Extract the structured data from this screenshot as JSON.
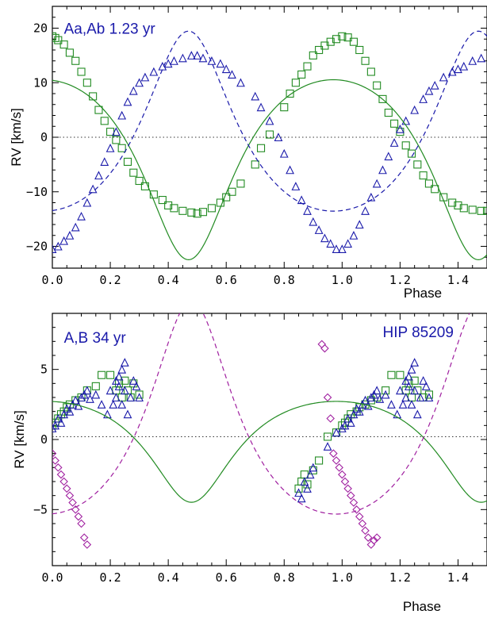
{
  "colors": {
    "primary": "#228b22",
    "secondary": "#1a1aaa",
    "outer": "#a020a0",
    "zero_line": "#333333"
  },
  "chart_data": [
    {
      "type": "scatter",
      "title": "",
      "xlabel": "Phase",
      "ylabel": "RV [km/s]",
      "xlim": [
        0.0,
        1.5
      ],
      "ylim": [
        -24,
        24
      ],
      "xticks": [
        0.0,
        0.2,
        0.4,
        0.6,
        0.8,
        1.0,
        1.2,
        1.4
      ],
      "xtick_labels": [
        "0.0",
        "0.2",
        "0.4",
        "0.6",
        "0.8",
        "1.0",
        "1.2",
        "1.4"
      ],
      "yticks": [
        -20,
        -10,
        0,
        10,
        20
      ],
      "ytick_labels": [
        "−20",
        "−10",
        "0",
        "10",
        "20"
      ],
      "zero_line": 0,
      "annotations": [
        {
          "text": "Aa,Ab  1.23 yr",
          "x": 0.04,
          "y": 19.0,
          "color": "#1a1aaa"
        }
      ],
      "series": [
        {
          "kind": "points",
          "marker": "square",
          "color": "#228b22",
          "x": [
            0.0,
            0.01,
            0.02,
            0.04,
            0.06,
            0.08,
            0.1,
            0.12,
            0.14,
            0.16,
            0.18,
            0.2,
            0.22,
            0.24,
            0.26,
            0.28,
            0.3,
            0.32,
            0.35,
            0.38,
            0.4,
            0.42,
            0.45,
            0.48,
            0.5,
            0.52,
            0.55,
            0.58,
            0.6,
            0.62,
            0.65,
            0.7,
            0.72,
            0.75,
            0.8,
            0.82,
            0.84,
            0.86,
            0.88,
            0.9,
            0.92,
            0.94,
            0.96,
            0.98,
            1.0,
            1.02,
            1.04,
            1.06,
            1.08,
            1.1,
            1.12,
            1.14,
            1.16,
            1.18,
            1.2,
            1.22,
            1.24,
            1.26,
            1.28,
            1.3,
            1.32,
            1.35,
            1.38,
            1.4,
            1.42,
            1.45,
            1.48,
            1.5
          ],
          "y": [
            18.5,
            18.2,
            17.8,
            17.0,
            15.5,
            14.0,
            12.0,
            10.0,
            7.5,
            5.0,
            3.0,
            1.0,
            -0.5,
            -2.0,
            -4.5,
            -6.5,
            -8.0,
            -9.0,
            -10.5,
            -11.5,
            -12.5,
            -13.0,
            -13.5,
            -13.8,
            -14.0,
            -13.7,
            -13.0,
            -12.0,
            -11.0,
            -10.0,
            -8.5,
            -5.0,
            -2.0,
            0.5,
            5.5,
            8.0,
            10.0,
            11.5,
            13.0,
            15.0,
            16.0,
            16.8,
            17.5,
            18.0,
            18.5,
            18.3,
            17.5,
            16.0,
            14.0,
            12.0,
            9.5,
            7.0,
            4.5,
            2.5,
            1.0,
            -1.5,
            -3.0,
            -5.0,
            -7.0,
            -8.5,
            -9.5,
            -11.0,
            -12.0,
            -12.5,
            -13.0,
            -13.3,
            -13.5,
            -13.5
          ]
        },
        {
          "kind": "points",
          "marker": "triangle",
          "color": "#1a1aaa",
          "x": [
            0.0,
            0.02,
            0.04,
            0.06,
            0.08,
            0.1,
            0.12,
            0.14,
            0.16,
            0.18,
            0.2,
            0.22,
            0.24,
            0.26,
            0.28,
            0.3,
            0.32,
            0.35,
            0.38,
            0.4,
            0.42,
            0.45,
            0.48,
            0.5,
            0.52,
            0.55,
            0.58,
            0.6,
            0.62,
            0.65,
            0.7,
            0.72,
            0.75,
            0.78,
            0.8,
            0.82,
            0.84,
            0.86,
            0.88,
            0.9,
            0.92,
            0.94,
            0.96,
            0.98,
            1.0,
            1.02,
            1.04,
            1.06,
            1.08,
            1.1,
            1.12,
            1.14,
            1.16,
            1.18,
            1.2,
            1.22,
            1.25,
            1.28,
            1.3,
            1.32,
            1.35,
            1.38,
            1.4,
            1.42,
            1.45,
            1.48
          ],
          "y": [
            -20.5,
            -20.0,
            -19.0,
            -18.0,
            -16.5,
            -14.5,
            -12.0,
            -9.5,
            -7.0,
            -4.5,
            -2.0,
            1.0,
            4.0,
            6.5,
            8.5,
            10.0,
            11.0,
            12.0,
            13.0,
            13.5,
            14.0,
            14.5,
            15.0,
            15.0,
            14.5,
            14.0,
            13.5,
            12.5,
            11.5,
            10.0,
            7.5,
            5.5,
            3.0,
            0.0,
            -3.0,
            -6.0,
            -9.0,
            -11.5,
            -13.5,
            -15.5,
            -17.0,
            -18.5,
            -19.5,
            -20.5,
            -20.5,
            -19.5,
            -18.0,
            -16.0,
            -13.5,
            -11.0,
            -8.5,
            -6.0,
            -3.5,
            -1.0,
            1.5,
            3.0,
            5.0,
            7.0,
            8.5,
            9.5,
            11.0,
            12.0,
            12.5,
            13.0,
            14.0,
            14.5
          ]
        },
        {
          "kind": "curve",
          "style": "solid",
          "color": "#228b22",
          "gamma": -1.5,
          "amplitude": 16.5,
          "e": 0.27,
          "omega_deg": 180,
          "phase_offset": 0.47
        },
        {
          "kind": "curve",
          "style": "dashed",
          "color": "#1a1aaa",
          "gamma": -1.5,
          "amplitude": 16.5,
          "e": 0.27,
          "omega_deg": 0,
          "phase_offset": 0.47
        }
      ]
    },
    {
      "type": "scatter",
      "title": "",
      "xlabel": "Phase",
      "ylabel": "RV [km/s]",
      "xlim": [
        0.0,
        1.5
      ],
      "ylim": [
        -9,
        9
      ],
      "xticks": [
        0.0,
        0.2,
        0.4,
        0.6,
        0.8,
        1.0,
        1.2,
        1.4
      ],
      "xtick_labels": [
        "0.0",
        "0.2",
        "0.4",
        "0.6",
        "0.8",
        "1.0",
        "1.2",
        "1.4"
      ],
      "yticks": [
        -5,
        0,
        5
      ],
      "ytick_labels": [
        "−5",
        "0",
        "5"
      ],
      "zero_line": 0.2,
      "annotations": [
        {
          "text": "A,B 34 yr",
          "x": 0.04,
          "y": 6.9,
          "color": "#1a1aaa"
        },
        {
          "text": "HIP 85209",
          "x": 1.14,
          "y": 7.3,
          "color": "#1a1aaa"
        }
      ],
      "series": [
        {
          "kind": "points",
          "marker": "square",
          "color": "#228b22",
          "x": [
            0.0,
            0.01,
            0.02,
            0.03,
            0.04,
            0.05,
            0.06,
            0.08,
            0.1,
            0.12,
            0.15,
            0.17,
            0.2,
            0.22,
            0.23,
            0.24,
            0.25,
            0.26,
            0.27,
            0.28,
            0.3,
            0.85,
            0.86,
            0.87,
            0.88,
            0.9,
            0.92,
            0.95,
            0.98,
            1.0,
            1.01,
            1.02,
            1.03,
            1.05,
            1.06,
            1.08,
            1.1,
            1.12,
            1.15,
            1.17,
            1.2,
            1.22,
            1.23,
            1.24,
            1.25,
            1.26,
            1.28,
            1.3
          ],
          "y": [
            1.0,
            1.2,
            1.5,
            1.8,
            2.0,
            2.3,
            2.5,
            2.8,
            3.0,
            3.5,
            3.8,
            4.6,
            4.6,
            3.5,
            4.0,
            3.0,
            4.2,
            3.5,
            3.0,
            4.0,
            3.2,
            -3.5,
            -3.0,
            -2.5,
            -3.2,
            -2.2,
            -1.5,
            0.2,
            0.5,
            1.0,
            1.2,
            1.5,
            1.8,
            2.0,
            2.3,
            2.5,
            2.8,
            3.0,
            3.5,
            4.6,
            4.6,
            3.5,
            4.0,
            3.0,
            4.2,
            3.5,
            3.0,
            3.2
          ]
        },
        {
          "kind": "points",
          "marker": "triangle",
          "color": "#1a1aaa",
          "x": [
            0.0,
            0.01,
            0.02,
            0.03,
            0.04,
            0.05,
            0.06,
            0.07,
            0.08,
            0.09,
            0.1,
            0.11,
            0.12,
            0.13,
            0.15,
            0.17,
            0.19,
            0.2,
            0.21,
            0.22,
            0.22,
            0.23,
            0.23,
            0.24,
            0.24,
            0.25,
            0.25,
            0.26,
            0.27,
            0.28,
            0.29,
            0.3,
            0.85,
            0.86,
            0.87,
            0.88,
            0.89,
            0.9,
            0.95,
            0.98,
            1.0,
            1.01,
            1.02,
            1.03,
            1.04,
            1.05,
            1.06,
            1.07,
            1.08,
            1.09,
            1.1,
            1.11,
            1.12,
            1.13,
            1.15,
            1.17,
            1.19,
            1.2,
            1.21,
            1.22,
            1.22,
            1.23,
            1.23,
            1.24,
            1.24,
            1.25,
            1.25,
            1.26,
            1.27,
            1.28,
            1.29,
            1.3
          ],
          "y": [
            0.8,
            1.0,
            1.5,
            1.2,
            1.8,
            2.2,
            2.0,
            2.5,
            2.8,
            2.4,
            3.0,
            3.2,
            3.5,
            2.9,
            3.2,
            2.5,
            1.8,
            3.5,
            2.5,
            4.2,
            3.0,
            4.5,
            3.8,
            2.5,
            5.0,
            3.5,
            5.5,
            1.8,
            3.0,
            4.2,
            3.8,
            3.0,
            -3.8,
            -4.2,
            -3.0,
            -3.5,
            -2.5,
            -2.0,
            -0.5,
            0.5,
            0.8,
            1.0,
            1.5,
            1.2,
            1.8,
            2.2,
            2.0,
            2.5,
            2.8,
            2.4,
            3.0,
            3.2,
            3.5,
            2.9,
            3.2,
            2.5,
            1.8,
            3.5,
            2.5,
            4.2,
            3.0,
            4.5,
            3.8,
            2.5,
            5.0,
            3.5,
            5.5,
            1.8,
            3.0,
            4.2,
            3.8,
            3.0
          ]
        },
        {
          "kind": "points",
          "marker": "diamond",
          "color": "#a020a0",
          "x": [
            0.0,
            0.01,
            0.02,
            0.03,
            0.04,
            0.05,
            0.06,
            0.07,
            0.08,
            0.09,
            0.1,
            0.11,
            0.12,
            0.93,
            0.94,
            0.95,
            0.96,
            0.97,
            0.98,
            0.99,
            1.0,
            1.01,
            1.02,
            1.03,
            1.04,
            1.05,
            1.06,
            1.07,
            1.08,
            1.09,
            1.1,
            1.11,
            1.12
          ],
          "y": [
            -1.0,
            -1.5,
            -2.0,
            -2.5,
            -3.0,
            -3.5,
            -4.0,
            -4.5,
            -5.0,
            -5.5,
            -6.0,
            -7.0,
            -7.5,
            6.8,
            6.5,
            3.0,
            1.5,
            -1.0,
            -1.5,
            -2.0,
            -2.5,
            -3.0,
            -3.5,
            -4.0,
            -4.5,
            -5.0,
            -5.5,
            -6.0,
            -6.5,
            -7.0,
            -7.5,
            -7.2,
            -7.0
          ]
        },
        {
          "kind": "curve",
          "style": "solid",
          "color": "#228b22",
          "gamma": 0.2,
          "amplitude": 3.6,
          "e": 0.3,
          "omega_deg": 180,
          "phase_offset": 0.48
        },
        {
          "kind": "curve",
          "style": "dashed",
          "color": "#a020a0",
          "gamma": 0.0,
          "amplitude": 7.6,
          "e": 0.3,
          "omega_deg": 0,
          "phase_offset": 0.48
        }
      ]
    }
  ]
}
